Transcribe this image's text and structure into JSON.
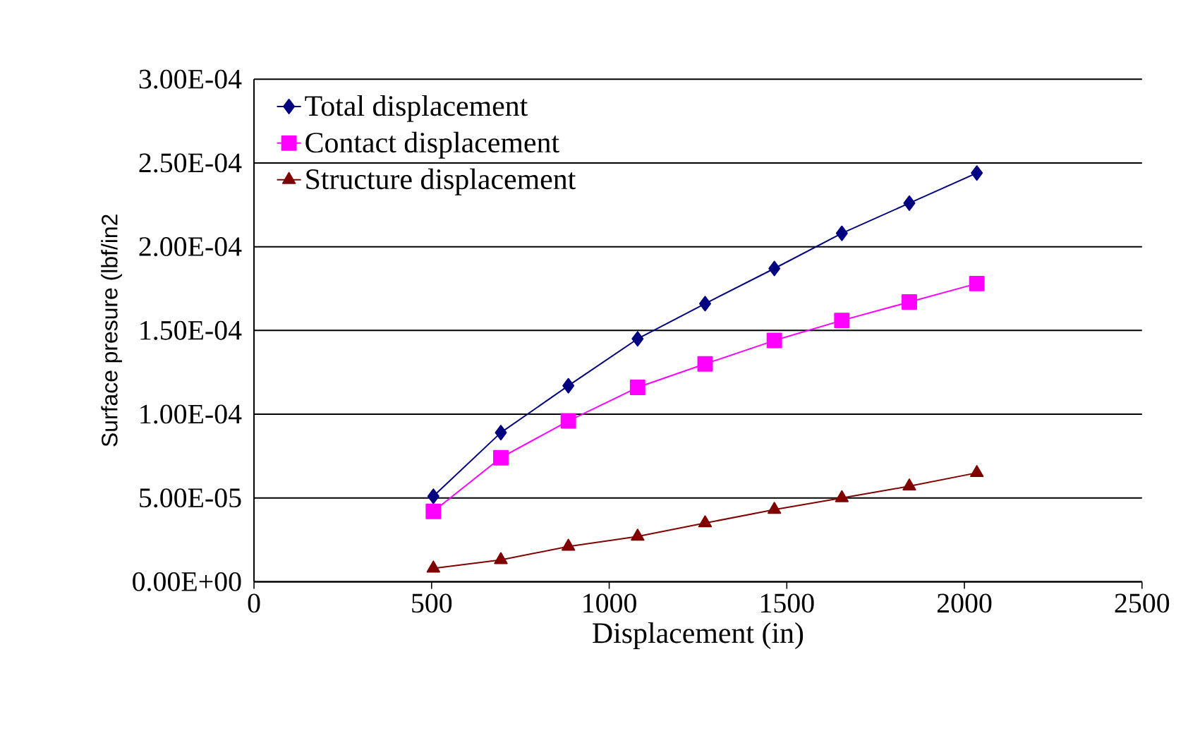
{
  "chart_data": {
    "type": "line",
    "xlabel": "Displacement (in)",
    "ylabel": "Surface presure (lbf/in2",
    "xlim": [
      0,
      2500
    ],
    "xticks": [
      0,
      500,
      1000,
      1500,
      2000,
      2500
    ],
    "ylim": [
      0,
      0.0003
    ],
    "yticks": [
      {
        "value": 0,
        "label": "0.00E+00"
      },
      {
        "value": 5e-05,
        "label": "5.00E-05"
      },
      {
        "value": 0.0001,
        "label": "1.00E-04"
      },
      {
        "value": 0.00015,
        "label": "1.50E-04"
      },
      {
        "value": 0.0002,
        "label": "2.00E-04"
      },
      {
        "value": 0.00025,
        "label": "2.50E-04"
      },
      {
        "value": 0.0003,
        "label": "3.00E-04"
      }
    ],
    "grid": "y",
    "legend": "top left",
    "x": [
      505,
      695,
      885,
      1080,
      1270,
      1465,
      1655,
      1845,
      2035
    ],
    "series": [
      {
        "name": "Total displacement",
        "color": "#000080",
        "marker": "diamond",
        "values": [
          5.1e-05,
          8.9e-05,
          0.000117,
          0.000145,
          0.000166,
          0.000187,
          0.000208,
          0.000226,
          0.000244
        ]
      },
      {
        "name": "Contact displacement",
        "color": "#ff00ff",
        "marker": "square",
        "values": [
          4.2e-05,
          7.4e-05,
          9.6e-05,
          0.000116,
          0.00013,
          0.000144,
          0.000156,
          0.000167,
          0.000178
        ]
      },
      {
        "name": "Structure displacement",
        "color": "#800000",
        "marker": "triangle",
        "values": [
          8e-06,
          1.3e-05,
          2.1e-05,
          2.7e-05,
          3.5e-05,
          4.3e-05,
          5e-05,
          5.7e-05,
          6.5e-05
        ]
      }
    ]
  }
}
